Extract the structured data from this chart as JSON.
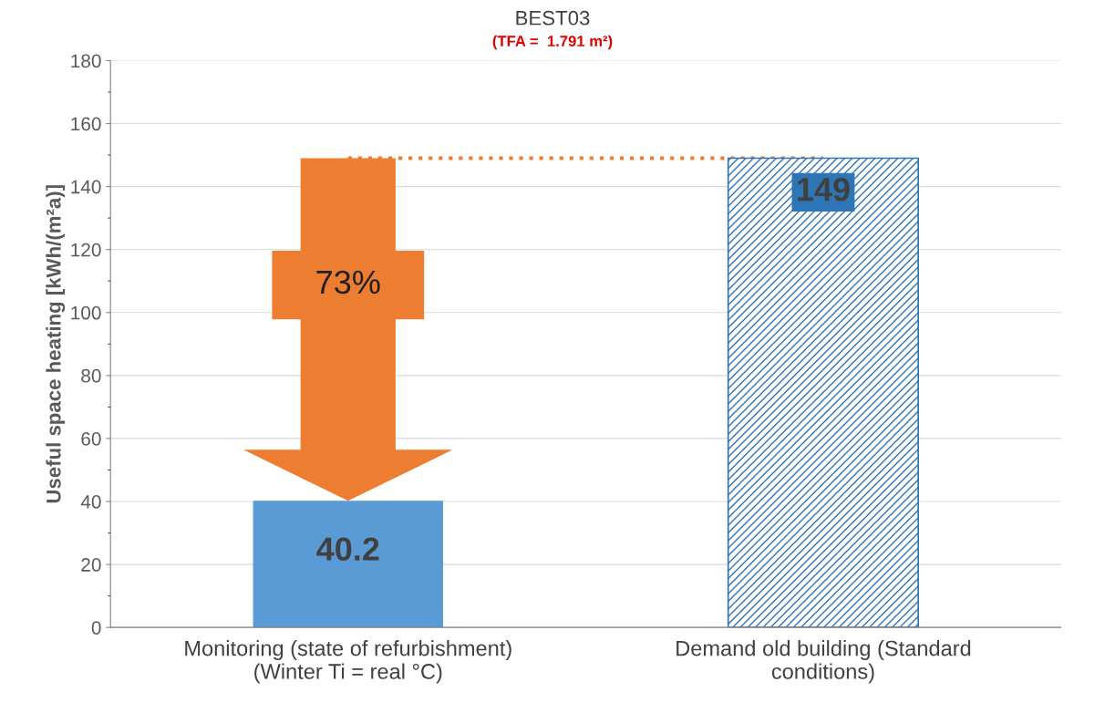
{
  "chart_data": {
    "type": "bar",
    "title": "BEST03",
    "subtitle": "(TFA =  1.791 m²)",
    "ylabel": "Useful space heating [kWh/(m²a)]",
    "categories": [
      "Monitoring (state of refurbishment)\n(Winter Ti = real °C)",
      "Demand old building (Standard\nconditions)"
    ],
    "values": [
      40.2,
      149
    ],
    "colors": [
      "#5b9bd5",
      "#2e75b6"
    ],
    "value_labels": [
      "40.2",
      "149"
    ],
    "ylim": [
      0,
      180
    ],
    "yticks": [
      0,
      20,
      40,
      60,
      80,
      100,
      120,
      140,
      160,
      180
    ],
    "grid": "y",
    "ref_lines": [
      {
        "axis": "y",
        "value": 149,
        "color": "#ed7d31",
        "line_style": "dotted"
      }
    ],
    "annotations": [
      "73%"
    ]
  }
}
